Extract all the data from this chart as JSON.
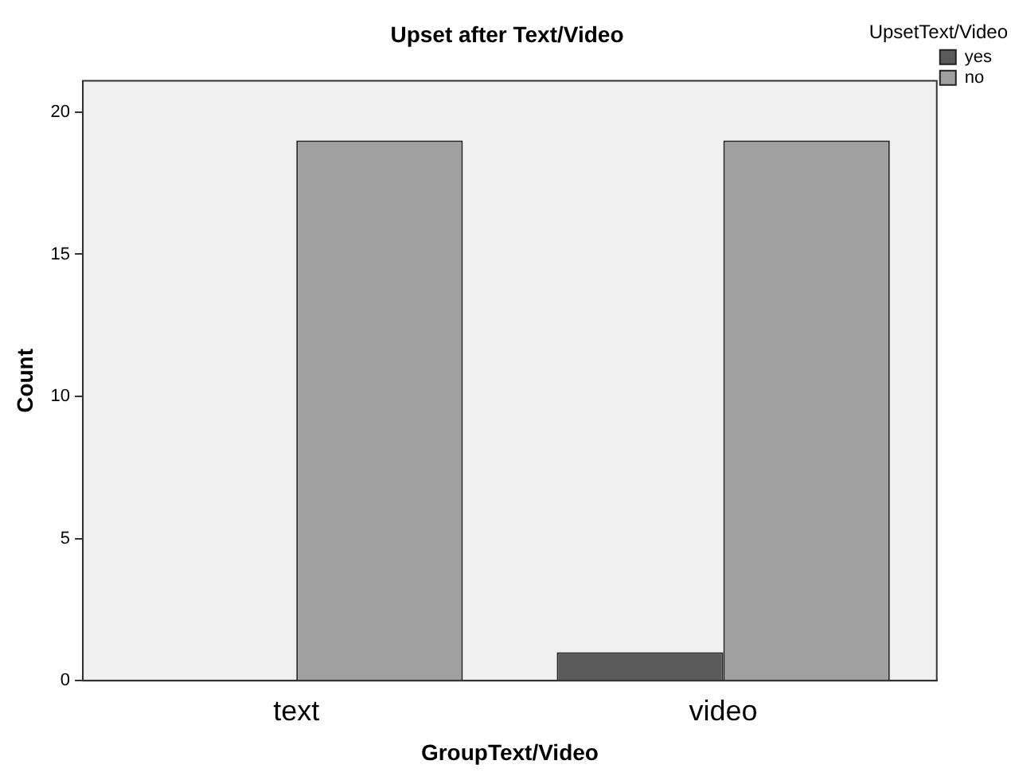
{
  "chart_data": {
    "type": "bar",
    "title": "Upset after Text/Video",
    "xlabel": "GroupText/Video",
    "ylabel": "Count",
    "legend_title": "UpsetText/Video",
    "categories": [
      "text",
      "video"
    ],
    "series": [
      {
        "name": "yes",
        "color": "#5a5a5a",
        "values": [
          0,
          1
        ]
      },
      {
        "name": "no",
        "color": "#a0a0a0",
        "values": [
          19,
          19
        ]
      }
    ],
    "ylim": [
      0,
      21.1
    ],
    "yticks": [
      0,
      5,
      10,
      15,
      20
    ],
    "grid": false,
    "legend": "top right"
  }
}
